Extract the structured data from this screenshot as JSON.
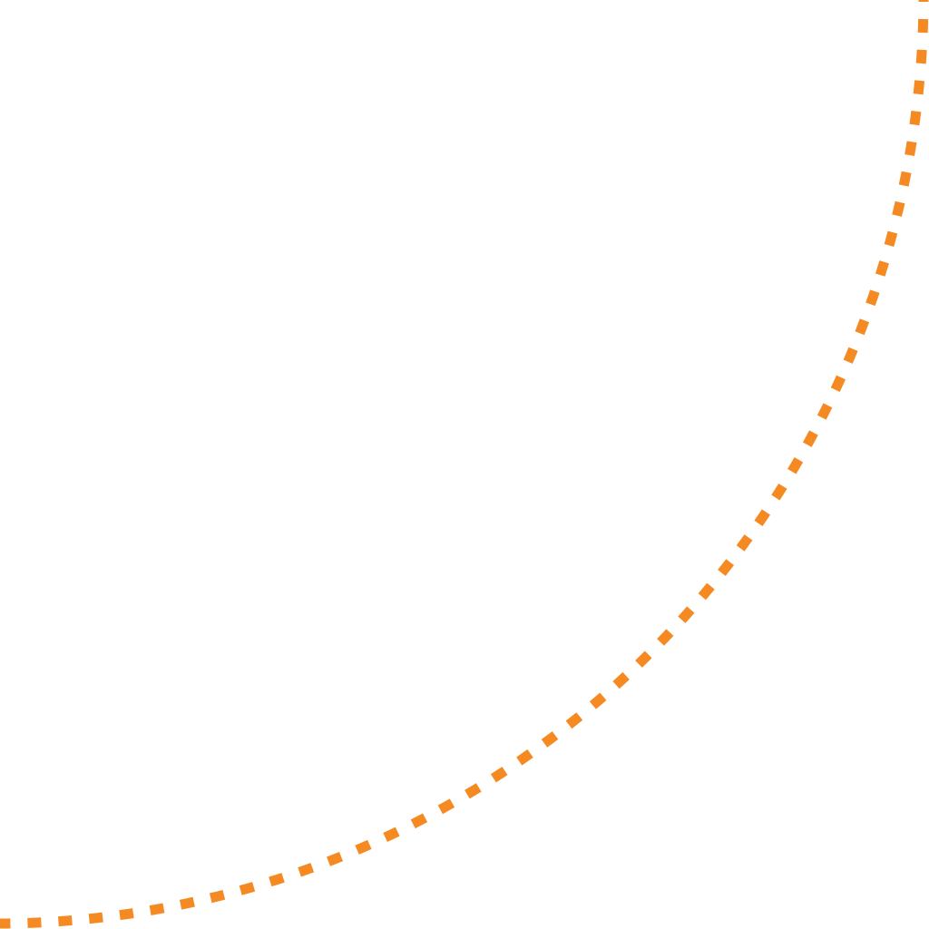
{
  "graphic": {
    "shape": "quarter-circle-arc",
    "stroke_color": "#F58A23",
    "line_style": "dashed",
    "background_color": "#FFFFFF"
  }
}
